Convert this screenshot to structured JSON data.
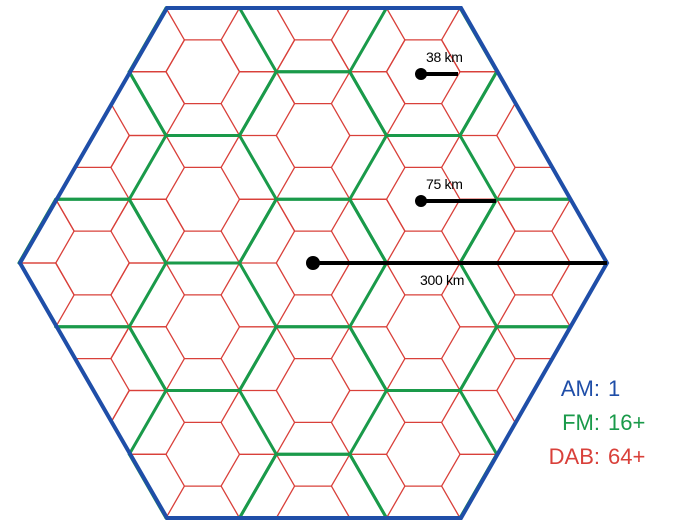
{
  "diagram": {
    "colors": {
      "am": "#1f4ea8",
      "fm": "#1a9a4a",
      "dab": "#d9403a",
      "radius_line": "#000000"
    },
    "radius_labels": [
      {
        "text": "38 km",
        "group": "dab"
      },
      {
        "text": "75 km",
        "group": "fm"
      },
      {
        "text": "300 km",
        "group": "am"
      }
    ]
  },
  "legend": {
    "items": [
      {
        "name": "AM:",
        "value": "1",
        "color": "#1f4ea8"
      },
      {
        "name": "FM:",
        "value": "16+",
        "color": "#1a9a4a"
      },
      {
        "name": "DAB:",
        "value": "64+",
        "color": "#d9403a"
      }
    ]
  }
}
